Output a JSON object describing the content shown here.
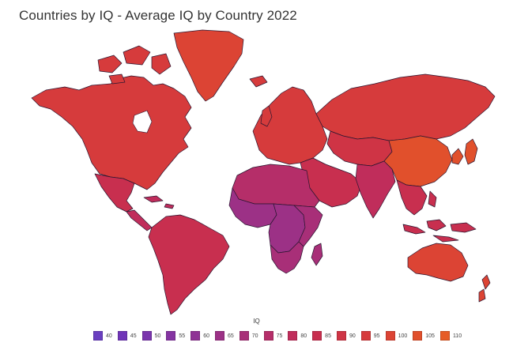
{
  "title": "Countries by IQ - Average IQ by Country 2022",
  "legend": {
    "title": "IQ",
    "items": [
      {
        "label": "40",
        "color": "#6a3fc0"
      },
      {
        "label": "45",
        "color": "#7035b8"
      },
      {
        "label": "50",
        "color": "#7a35ad"
      },
      {
        "label": "55",
        "color": "#8534a2"
      },
      {
        "label": "60",
        "color": "#8f3395"
      },
      {
        "label": "65",
        "color": "#9c3186"
      },
      {
        "label": "70",
        "color": "#a82f78"
      },
      {
        "label": "75",
        "color": "#b52e69"
      },
      {
        "label": "80",
        "color": "#c02d5b"
      },
      {
        "label": "85",
        "color": "#c82f4f"
      },
      {
        "label": "90",
        "color": "#cf3445"
      },
      {
        "label": "95",
        "color": "#d63b3c"
      },
      {
        "label": "100",
        "color": "#dc4434"
      },
      {
        "label": "105",
        "color": "#e1502c"
      },
      {
        "label": "110",
        "color": "#e65c26"
      }
    ]
  },
  "regions": [
    {
      "id": "north-america",
      "value": 97,
      "color": "#d63b3c"
    },
    {
      "id": "greenland",
      "value": 100,
      "color": "#dc4434"
    },
    {
      "id": "mexico",
      "value": 87,
      "color": "#c82f4f"
    },
    {
      "id": "central-america",
      "value": 80,
      "color": "#c02d5b"
    },
    {
      "id": "south-america",
      "value": 85,
      "color": "#c82f4f"
    },
    {
      "id": "europe",
      "value": 98,
      "color": "#d63b3c"
    },
    {
      "id": "russia",
      "value": 97,
      "color": "#d63b3c"
    },
    {
      "id": "middle-east",
      "value": 84,
      "color": "#c82f4f"
    },
    {
      "id": "north-africa",
      "value": 76,
      "color": "#b52e69"
    },
    {
      "id": "west-africa",
      "value": 65,
      "color": "#9c3186"
    },
    {
      "id": "central-africa",
      "value": 66,
      "color": "#9c3186"
    },
    {
      "id": "east-africa",
      "value": 70,
      "color": "#a82f78"
    },
    {
      "id": "southern-africa",
      "value": 70,
      "color": "#a82f78"
    },
    {
      "id": "central-asia",
      "value": 90,
      "color": "#cf3445"
    },
    {
      "id": "south-asia",
      "value": 80,
      "color": "#c02d5b"
    },
    {
      "id": "china",
      "value": 105,
      "color": "#e1502c"
    },
    {
      "id": "japan-korea",
      "value": 106,
      "color": "#e1502c"
    },
    {
      "id": "southeast-asia",
      "value": 88,
      "color": "#c82f4f"
    },
    {
      "id": "indonesia",
      "value": 87,
      "color": "#c82f4f"
    },
    {
      "id": "australia",
      "value": 99,
      "color": "#dc4434"
    },
    {
      "id": "new-zealand",
      "value": 99,
      "color": "#dc4434"
    },
    {
      "id": "madagascar",
      "value": 70,
      "color": "#a82f78"
    }
  ]
}
